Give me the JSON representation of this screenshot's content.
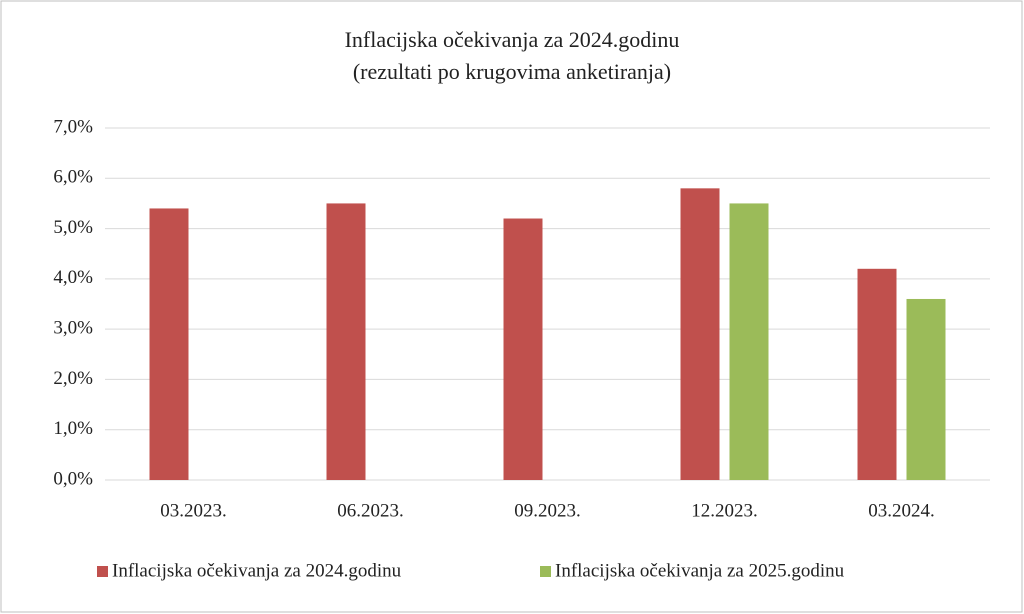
{
  "chart_data": {
    "type": "bar",
    "title": "Inflacijska očekivanja za 2024.godinu",
    "subtitle": "(rezultati po krugovima anketiranja)",
    "categories": [
      "03.2023.",
      "06.2023.",
      "09.2023.",
      "12.2023.",
      "03.2024."
    ],
    "series": [
      {
        "name": "Inflacijska očekivanja za 2024.godinu",
        "color": "#c0504d",
        "values": [
          5.4,
          5.5,
          5.2,
          5.8,
          4.2
        ]
      },
      {
        "name": "Inflacijska očekivanja za 2025.godinu",
        "color": "#9bbb59",
        "values": [
          null,
          null,
          null,
          5.5,
          3.6
        ]
      }
    ],
    "ylim": [
      0,
      7
    ],
    "yticks": [
      {
        "value": 0,
        "label": "0,0%"
      },
      {
        "value": 1,
        "label": "1,0%"
      },
      {
        "value": 2,
        "label": "2,0%"
      },
      {
        "value": 3,
        "label": "3,0%"
      },
      {
        "value": 4,
        "label": "4,0%"
      },
      {
        "value": 5,
        "label": "5,0%"
      },
      {
        "value": 6,
        "label": "6,0%"
      },
      {
        "value": 7,
        "label": "7,0%"
      }
    ],
    "grid": true,
    "legend": "bottom"
  }
}
